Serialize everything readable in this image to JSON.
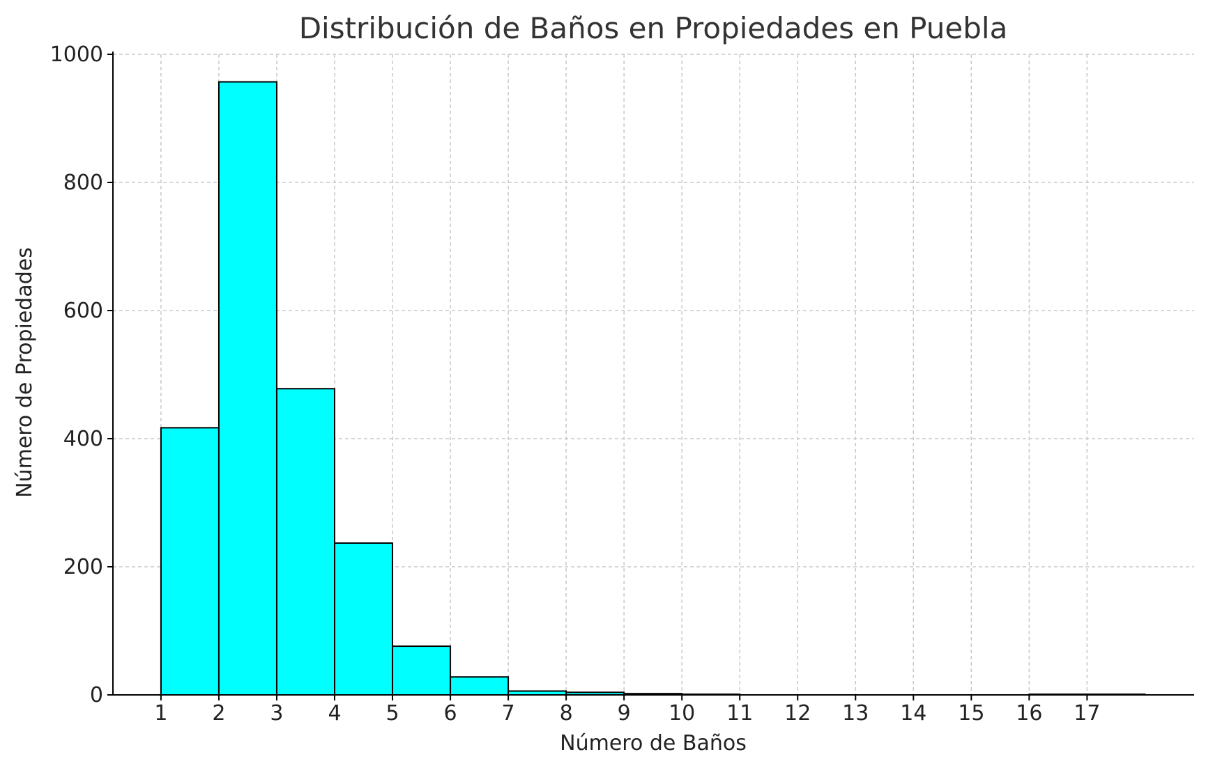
{
  "chart_data": {
    "type": "bar",
    "title": "Distribución de Baños en Propiedades en Puebla",
    "xlabel": "Número de Baños",
    "ylabel": "Número de Propiedades",
    "bin_edges": [
      1,
      2,
      3,
      4,
      5,
      6,
      7,
      8,
      9,
      10,
      11,
      12,
      13,
      14,
      15,
      16,
      17,
      18
    ],
    "values": [
      417,
      957,
      478,
      237,
      76,
      28,
      6,
      4,
      2,
      1,
      0,
      0,
      0,
      0,
      0,
      1,
      1
    ],
    "x_ticks": [
      "1",
      "2",
      "3",
      "4",
      "5",
      "6",
      "7",
      "8",
      "9",
      "10",
      "11",
      "12",
      "13",
      "14",
      "15",
      "16",
      "17"
    ],
    "y_ticks": [
      "0",
      "200",
      "400",
      "600",
      "800",
      "1000"
    ],
    "xlim": [
      0.17,
      18.85
    ],
    "ylim": [
      0,
      1000
    ],
    "grid": true,
    "bar_color": "#00ffff",
    "edge_color": "#000000"
  }
}
